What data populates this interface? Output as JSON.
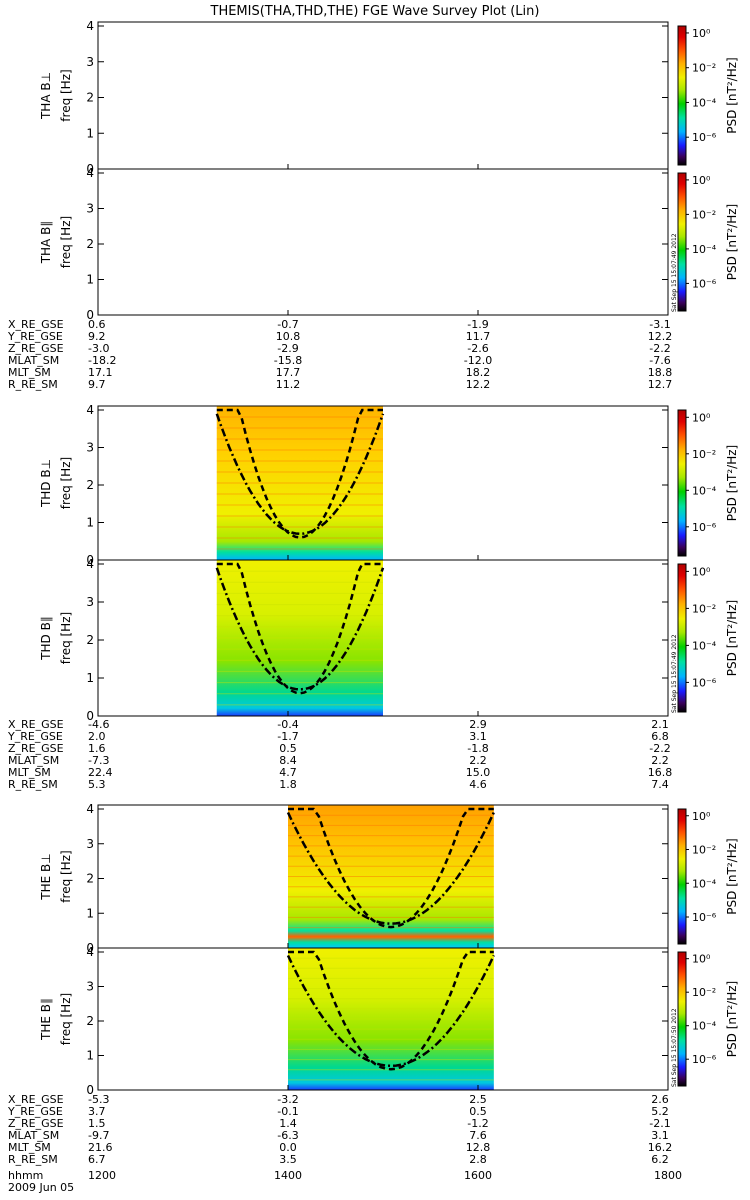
{
  "title": "THEMIS(THA,THD,THE) FGE Wave Survey Plot (Lin)",
  "ylabel_freq": "freq [Hz]",
  "colorbar": {
    "label": "PSD [nT²/Hz]",
    "tick_labels": [
      "10⁰",
      "10⁻²",
      "10⁻⁴",
      "10⁻⁶"
    ],
    "colors": [
      "#000000",
      "#3a005c",
      "#1a1aff",
      "#00b4ff",
      "#00e0a0",
      "#00d000",
      "#a8e800",
      "#f0f000",
      "#ffb000",
      "#ff5000",
      "#e00000",
      "#b00000"
    ]
  },
  "timestamps": [
    "Sat Sep 15 15:07:49 2012",
    "Sat Sep 15 15:07:49 2012",
    "Sat Sep 15 15:07:50 2012"
  ],
  "time_axis": {
    "ticks": [
      "1200",
      "1400",
      "1600",
      "1800"
    ],
    "hhmm_label": "hhmm",
    "date_label": "2009 Jun 05"
  },
  "chart_data": [
    {
      "type": "heatmap",
      "probe": "THA",
      "component": "B⊥",
      "panel_label": "THA B⊥",
      "ylim": [
        0,
        4
      ],
      "yticks": [
        "0",
        "1",
        "2",
        "3",
        "4"
      ],
      "data_range": null
    },
    {
      "type": "heatmap",
      "probe": "THA",
      "component": "B∥",
      "panel_label": "THA B∥",
      "ylim": [
        0,
        4
      ],
      "yticks": [
        "0",
        "1",
        "2",
        "3",
        "4"
      ],
      "data_range": null
    },
    {
      "type": "heatmap",
      "probe": "THD",
      "component": "B⊥",
      "panel_label": "THD B⊥",
      "ylim": [
        0,
        4
      ],
      "yticks": [
        "0",
        "1",
        "2",
        "3",
        "4"
      ],
      "data_range": [
        "1315",
        "1500"
      ]
    },
    {
      "type": "heatmap",
      "probe": "THD",
      "component": "B∥",
      "panel_label": "THD B∥",
      "ylim": [
        0,
        4
      ],
      "yticks": [
        "0",
        "1",
        "2",
        "3",
        "4"
      ],
      "data_range": [
        "1315",
        "1500"
      ]
    },
    {
      "type": "heatmap",
      "probe": "THE",
      "component": "B⊥",
      "panel_label": "THE B⊥",
      "ylim": [
        0,
        4
      ],
      "yticks": [
        "0",
        "1",
        "2",
        "3",
        "4"
      ],
      "data_range": [
        "1400",
        "1610"
      ]
    },
    {
      "type": "heatmap",
      "probe": "THE",
      "component": "B∥",
      "panel_label": "THE B∥",
      "ylim": [
        0,
        4
      ],
      "yticks": [
        "0",
        "1",
        "2",
        "3",
        "4"
      ],
      "data_range": [
        "1400",
        "1610"
      ]
    }
  ],
  "ephemeris": [
    {
      "probe": "THA",
      "rows": [
        {
          "label": "X_RE_GSE",
          "values": [
            "0.6",
            "-0.7",
            "-1.9",
            "-3.1"
          ]
        },
        {
          "label": "Y_RE_GSE",
          "values": [
            "9.2",
            "10.8",
            "11.7",
            "12.2"
          ]
        },
        {
          "label": "Z_RE_GSE",
          "values": [
            "-3.0",
            "-2.9",
            "-2.6",
            "-2.2"
          ]
        },
        {
          "label": "MLAT_SM",
          "values": [
            "-18.2",
            "-15.8",
            "-12.0",
            "-7.6"
          ]
        },
        {
          "label": "MLT_SM",
          "values": [
            "17.1",
            "17.7",
            "18.2",
            "18.8"
          ]
        },
        {
          "label": "R_RE_SM",
          "values": [
            "9.7",
            "11.2",
            "12.2",
            "12.7"
          ]
        }
      ]
    },
    {
      "probe": "THD",
      "rows": [
        {
          "label": "X_RE_GSE",
          "values": [
            "-4.6",
            "-0.4",
            "2.9",
            "2.1"
          ]
        },
        {
          "label": "Y_RE_GSE",
          "values": [
            "2.0",
            "-1.7",
            "3.1",
            "6.8"
          ]
        },
        {
          "label": "Z_RE_GSE",
          "values": [
            "1.6",
            "0.5",
            "-1.8",
            "-2.2"
          ]
        },
        {
          "label": "MLAT_SM",
          "values": [
            "-7.3",
            "8.4",
            "2.2",
            "2.2"
          ]
        },
        {
          "label": "MLT_SM",
          "values": [
            "22.4",
            "4.7",
            "15.0",
            "16.8"
          ]
        },
        {
          "label": "R_RE_SM",
          "values": [
            "5.3",
            "1.8",
            "4.6",
            "7.4"
          ]
        }
      ]
    },
    {
      "probe": "THE",
      "rows": [
        {
          "label": "X_RE_GSE",
          "values": [
            "-5.3",
            "-3.2",
            "2.5",
            "2.6"
          ]
        },
        {
          "label": "Y_RE_GSE",
          "values": [
            "3.7",
            "-0.1",
            "0.5",
            "5.2"
          ]
        },
        {
          "label": "Z_RE_GSE",
          "values": [
            "1.5",
            "1.4",
            "-1.2",
            "-2.1"
          ]
        },
        {
          "label": "MLAT_SM",
          "values": [
            "-9.7",
            "-6.3",
            "7.6",
            "3.1"
          ]
        },
        {
          "label": "MLT_SM",
          "values": [
            "21.6",
            "0.0",
            "12.8",
            "16.2"
          ]
        },
        {
          "label": "R_RE_SM",
          "values": [
            "6.7",
            "3.5",
            "2.8",
            "6.2"
          ]
        }
      ]
    }
  ]
}
